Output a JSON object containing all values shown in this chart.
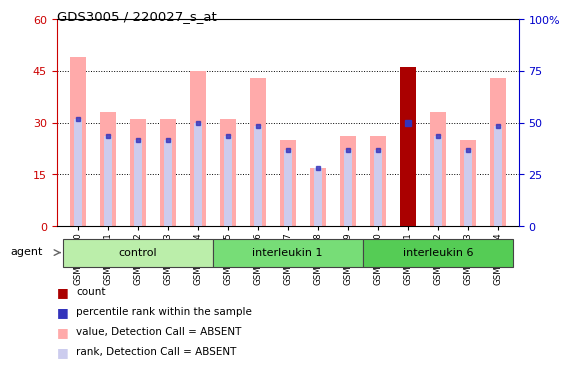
{
  "title": "GDS3005 / 220027_s_at",
  "samples": [
    "GSM211500",
    "GSM211501",
    "GSM211502",
    "GSM211503",
    "GSM211504",
    "GSM211505",
    "GSM211506",
    "GSM211507",
    "GSM211508",
    "GSM211509",
    "GSM211510",
    "GSM211511",
    "GSM211512",
    "GSM211513",
    "GSM211514"
  ],
  "pink_bar_values": [
    49,
    33,
    31,
    31,
    45,
    31,
    43,
    25,
    17,
    26,
    26,
    46,
    33,
    25,
    43
  ],
  "blue_marker_values": [
    31,
    26,
    25,
    25,
    30,
    26,
    29,
    22,
    17,
    22,
    22,
    30,
    26,
    22,
    29
  ],
  "rank_bar_values": [
    31,
    26,
    25,
    25,
    30,
    26,
    29,
    22,
    17,
    22,
    22,
    30,
    26,
    22,
    29
  ],
  "red_bar_index": 11,
  "red_bar_value": 46,
  "ylim_left": [
    0,
    60
  ],
  "ylim_right": [
    0,
    100
  ],
  "yticks_left": [
    0,
    15,
    30,
    45,
    60
  ],
  "yticks_right": [
    0,
    25,
    50,
    75,
    100
  ],
  "yticklabels_right": [
    "0",
    "25",
    "50",
    "75",
    "100%"
  ],
  "left_axis_color": "#cc0000",
  "right_axis_color": "#0000cc",
  "pink_bar_color": "#ffaaaa",
  "red_bar_color": "#aa0000",
  "blue_marker_color": "#3333bb",
  "lavender_bar_color": "#ccccee",
  "agent_label": "agent",
  "bar_width": 0.55,
  "rank_bar_width": 0.25,
  "group_ranges": [
    [
      0,
      4
    ],
    [
      5,
      9
    ],
    [
      10,
      14
    ]
  ],
  "group_labels": [
    "control",
    "interleukin 1",
    "interleukin 6"
  ],
  "group_colors": [
    "#bbeeaa",
    "#77dd77",
    "#55cc55"
  ],
  "legend_colors": [
    "#aa0000",
    "#3333bb",
    "#ffaaaa",
    "#ccccee"
  ],
  "legend_labels": [
    "count",
    "percentile rank within the sample",
    "value, Detection Call = ABSENT",
    "rank, Detection Call = ABSENT"
  ]
}
